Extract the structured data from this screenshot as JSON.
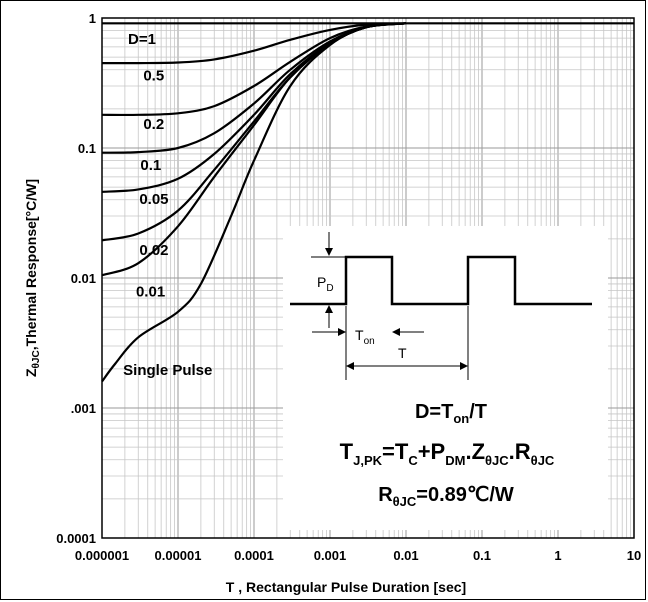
{
  "chart_data": {
    "type": "line",
    "title": "",
    "xlabel": "T , Rectangular Pulse Duration [sec]",
    "ylabel_parts": {
      "z": "Z",
      "sub": "θJC",
      "rest": ",Thermal Response[°C/W]"
    },
    "x_scale": "log",
    "y_scale": "log",
    "xlim": [
      1e-06,
      10
    ],
    "ylim": [
      0.0001,
      1
    ],
    "grid": true,
    "x_ticks": [
      {
        "v": 1e-06,
        "label": "0.000001"
      },
      {
        "v": 1e-05,
        "label": "0.00001"
      },
      {
        "v": 0.0001,
        "label": "0.0001"
      },
      {
        "v": 0.001,
        "label": "0.001"
      },
      {
        "v": 0.01,
        "label": "0.01"
      },
      {
        "v": 0.1,
        "label": "0.1"
      },
      {
        "v": 1,
        "label": "1"
      },
      {
        "v": 10,
        "label": "10"
      }
    ],
    "y_ticks": [
      {
        "v": 1,
        "label": "1"
      },
      {
        "v": 0.1,
        "label": "0.1"
      },
      {
        "v": 0.01,
        "label": "0.01"
      },
      {
        "v": 0.001,
        "label": ".001"
      },
      {
        "v": 0.0001,
        "label": "0.0001"
      }
    ],
    "series": [
      {
        "name": "D=1",
        "label_pos": [
          2.2e-06,
          0.63
        ],
        "x": [
          1e-06,
          1e-05,
          0.0001,
          0.001,
          0.01,
          0.1,
          1,
          10
        ],
        "y": [
          0.91,
          0.91,
          0.91,
          0.91,
          0.91,
          0.91,
          0.91,
          0.91
        ]
      },
      {
        "name": "0.5",
        "label_pos": [
          3.5e-06,
          0.33
        ],
        "x": [
          1e-06,
          3e-06,
          1e-05,
          3e-05,
          0.0001,
          0.0003,
          0.001,
          0.003,
          0.01
        ],
        "y": [
          0.45,
          0.45,
          0.455,
          0.48,
          0.56,
          0.68,
          0.81,
          0.89,
          0.91
        ]
      },
      {
        "name": "0.2",
        "label_pos": [
          3.5e-06,
          0.14
        ],
        "x": [
          1e-06,
          3e-06,
          1e-05,
          3e-05,
          0.0001,
          0.0003,
          0.001,
          0.003,
          0.01
        ],
        "y": [
          0.18,
          0.18,
          0.185,
          0.21,
          0.3,
          0.46,
          0.7,
          0.86,
          0.91
        ]
      },
      {
        "name": "0.1",
        "label_pos": [
          3.2e-06,
          0.068
        ],
        "x": [
          1e-06,
          3e-06,
          1e-05,
          3e-05,
          0.0001,
          0.0003,
          0.001,
          0.003,
          0.01
        ],
        "y": [
          0.092,
          0.093,
          0.1,
          0.13,
          0.22,
          0.4,
          0.66,
          0.85,
          0.91
        ]
      },
      {
        "name": "0.05",
        "label_pos": [
          3.1e-06,
          0.037
        ],
        "x": [
          1e-06,
          3e-06,
          1e-05,
          3e-05,
          0.0001,
          0.0003,
          0.001,
          0.003,
          0.01
        ],
        "y": [
          0.046,
          0.048,
          0.058,
          0.09,
          0.18,
          0.37,
          0.64,
          0.85,
          0.91
        ]
      },
      {
        "name": "0.02",
        "label_pos": [
          3.1e-06,
          0.015
        ],
        "x": [
          1e-06,
          3e-06,
          1e-05,
          3e-05,
          0.0001,
          0.0003,
          0.001,
          0.003,
          0.01
        ],
        "y": [
          0.0195,
          0.022,
          0.033,
          0.068,
          0.16,
          0.35,
          0.63,
          0.85,
          0.91
        ]
      },
      {
        "name": "0.01",
        "label_pos": [
          2.8e-06,
          0.0072
        ],
        "x": [
          1e-06,
          3e-06,
          1e-05,
          3e-05,
          0.0001,
          0.0003,
          0.001,
          0.003,
          0.01
        ],
        "y": [
          0.0105,
          0.013,
          0.025,
          0.06,
          0.15,
          0.35,
          0.63,
          0.85,
          0.91
        ]
      },
      {
        "name": "Single Pulse",
        "label_pos": [
          1.9e-06,
          0.0018
        ],
        "x": [
          1e-06,
          1.5e-06,
          3e-06,
          1e-05,
          2e-05,
          5e-05,
          0.0001,
          0.0003,
          0.001,
          0.003,
          0.01
        ],
        "y": [
          0.0016,
          0.0022,
          0.0035,
          0.0055,
          0.009,
          0.03,
          0.08,
          0.3,
          0.62,
          0.85,
          0.91
        ]
      }
    ],
    "annotations": {
      "pulse": {
        "pd_main": "P",
        "pd_sub": "D",
        "ton_main": "T",
        "ton_sub": "on",
        "t": "T"
      },
      "eq1": {
        "a": "D=T",
        "a_sub": "on",
        "b": "/T"
      },
      "eq2": {
        "t1": "T",
        "t1_sub": "J,PK",
        "t2": "=T",
        "t2_sub": "C",
        "t3": "+P",
        "t3_sub": "DM",
        "t4": ".Z",
        "t4_sub": "θJC",
        "t5": ".R",
        "t5_sub": "θJC"
      },
      "eq3": {
        "r": "R",
        "r_sub": "θJC",
        "val": "=0.89℃/W"
      }
    }
  }
}
